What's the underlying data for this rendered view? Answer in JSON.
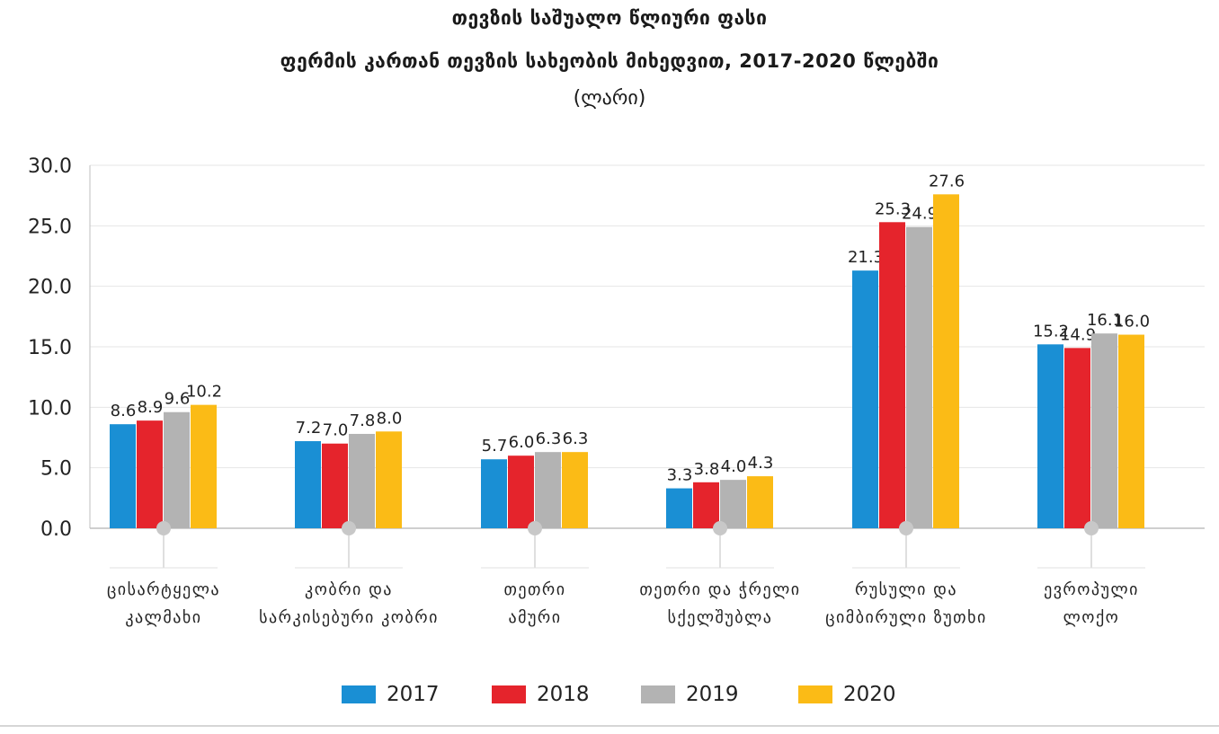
{
  "header": {
    "title_line1": "თევზის საშუალო წლიური ფასი",
    "title_line2": "ფერმის კართან თევზის სახეობის მიხედვით, 2017-2020 წლებში",
    "unit": "(ლარი)"
  },
  "colors": {
    "2017": "#1a8fd4",
    "2018": "#e5242c",
    "2019": "#b3b3b3",
    "2020": "#fbbb16",
    "grid": "#e6e6e6",
    "axis": "#bfbfbf"
  },
  "chart_data": {
    "type": "bar",
    "title": "თევზის საშუალო წლიური ფასი ფერმის კართან თევზის სახეობის მიხედვით, 2017-2020 წლებში",
    "ylabel": "(ლარი)",
    "ylim": [
      0,
      30
    ],
    "yticks": [
      "0.0",
      "5.0",
      "10.0",
      "15.0",
      "20.0",
      "25.0",
      "30.0"
    ],
    "grid": true,
    "legend_position": "bottom",
    "categories": [
      [
        "ცისარტყელა",
        "კალმახი"
      ],
      [
        "კობრი და",
        "სარკისებური კობრი"
      ],
      [
        "თეთრი",
        "ამური"
      ],
      [
        "თეთრი და ჭრელი",
        "სქელშუბლა"
      ],
      [
        "რუსული და",
        "ციმბირული ზუთხი"
      ],
      [
        "ევროპული",
        "ლოქო"
      ]
    ],
    "series": [
      {
        "name": "2017",
        "values": [
          8.6,
          7.2,
          5.7,
          3.3,
          21.3,
          15.2
        ],
        "labels": [
          "8.6",
          "7.2",
          "5.7",
          "3.3",
          "21.3",
          "15.2"
        ]
      },
      {
        "name": "2018",
        "values": [
          8.9,
          7.0,
          6.0,
          3.8,
          25.3,
          14.9
        ],
        "labels": [
          "8.9",
          "7.0",
          "6.0",
          "3.8",
          "25.3",
          "14.9"
        ]
      },
      {
        "name": "2019",
        "values": [
          9.6,
          7.8,
          6.3,
          4.0,
          24.9,
          16.1
        ],
        "labels": [
          "9.6",
          "7.8",
          "6.3",
          "4.0",
          "24.9",
          "16.1"
        ]
      },
      {
        "name": "2020",
        "values": [
          10.2,
          8.0,
          6.3,
          4.3,
          27.6,
          16.0
        ],
        "labels": [
          "10.2",
          "8.0",
          "6.3",
          "4.3",
          "27.6",
          "16.0"
        ]
      }
    ]
  }
}
